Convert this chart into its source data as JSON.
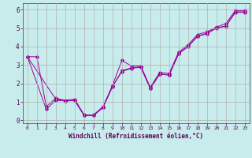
{
  "xlabel": "Windchill (Refroidissement éolien,°C)",
  "background_color": "#c8ecec",
  "line_color": "#990099",
  "grid_color": "#b0b0b0",
  "xlim": [
    -0.5,
    23.5
  ],
  "ylim": [
    -0.15,
    6.35
  ],
  "yticks": [
    0,
    1,
    2,
    3,
    4,
    5,
    6
  ],
  "xticks": [
    0,
    1,
    2,
    3,
    4,
    5,
    6,
    7,
    8,
    9,
    10,
    11,
    12,
    13,
    14,
    15,
    16,
    17,
    18,
    19,
    20,
    21,
    22,
    23
  ],
  "series1": [
    [
      0,
      3.45
    ],
    [
      1,
      3.45
    ],
    [
      2,
      0.75
    ],
    [
      3,
      1.2
    ],
    [
      4,
      1.1
    ],
    [
      5,
      1.15
    ],
    [
      6,
      0.3
    ],
    [
      7,
      0.3
    ],
    [
      8,
      0.75
    ],
    [
      9,
      1.9
    ],
    [
      10,
      3.25
    ],
    [
      11,
      2.95
    ],
    [
      12,
      2.95
    ],
    [
      13,
      1.8
    ],
    [
      14,
      2.6
    ],
    [
      15,
      2.55
    ],
    [
      16,
      3.7
    ],
    [
      17,
      4.1
    ],
    [
      18,
      4.65
    ],
    [
      19,
      4.8
    ],
    [
      20,
      5.05
    ],
    [
      21,
      5.25
    ],
    [
      22,
      5.95
    ],
    [
      23,
      5.95
    ]
  ],
  "series2": [
    [
      0,
      3.45
    ],
    [
      3,
      1.15
    ],
    [
      4,
      1.05
    ],
    [
      5,
      1.1
    ],
    [
      6,
      0.28
    ],
    [
      7,
      0.28
    ],
    [
      8,
      0.72
    ],
    [
      9,
      1.85
    ],
    [
      10,
      2.65
    ],
    [
      11,
      2.82
    ],
    [
      12,
      2.88
    ],
    [
      13,
      1.72
    ],
    [
      14,
      2.5
    ],
    [
      15,
      2.45
    ],
    [
      16,
      3.6
    ],
    [
      17,
      4.0
    ],
    [
      18,
      4.55
    ],
    [
      19,
      4.7
    ],
    [
      20,
      5.0
    ],
    [
      21,
      5.1
    ],
    [
      22,
      5.85
    ],
    [
      23,
      5.85
    ]
  ],
  "series3": [
    [
      0,
      3.45
    ],
    [
      2,
      0.6
    ],
    [
      3,
      1.1
    ],
    [
      4,
      1.05
    ],
    [
      5,
      1.08
    ],
    [
      6,
      0.27
    ],
    [
      7,
      0.27
    ],
    [
      8,
      0.7
    ],
    [
      9,
      1.82
    ],
    [
      10,
      2.7
    ],
    [
      11,
      2.85
    ],
    [
      12,
      2.9
    ],
    [
      13,
      1.75
    ],
    [
      14,
      2.52
    ],
    [
      15,
      2.47
    ],
    [
      16,
      3.62
    ],
    [
      17,
      4.02
    ],
    [
      18,
      4.57
    ],
    [
      19,
      4.72
    ],
    [
      20,
      5.01
    ],
    [
      21,
      5.12
    ],
    [
      22,
      5.88
    ],
    [
      23,
      5.88
    ]
  ]
}
